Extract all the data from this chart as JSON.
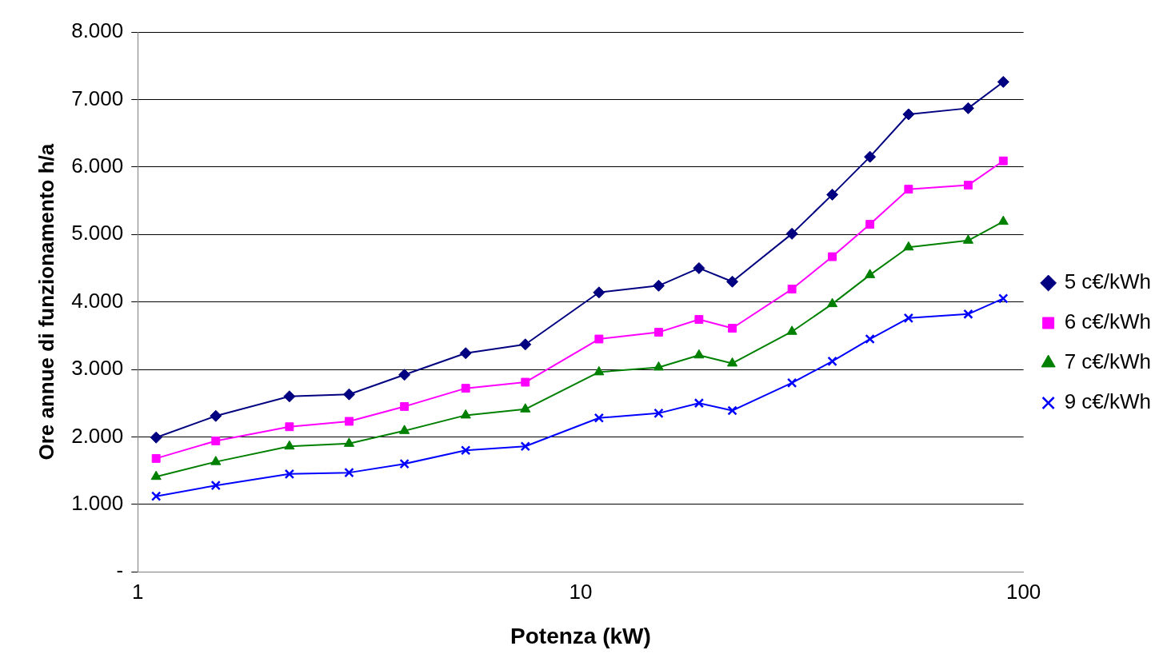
{
  "chart_data": {
    "type": "line",
    "xlabel": "Potenza (kW)",
    "ylabel": "Ore annue di funzionamento h/a",
    "x": [
      1.1,
      1.5,
      2.2,
      3,
      4,
      5.5,
      7.5,
      11,
      15,
      18.5,
      22,
      30,
      37,
      45,
      55,
      75,
      90
    ],
    "series": [
      {
        "name": "5 c€/kWh",
        "color": "#000080",
        "marker": "diamond",
        "values": [
          1990,
          2310,
          2600,
          2630,
          2920,
          3240,
          3370,
          4140,
          4240,
          4500,
          4300,
          5010,
          5590,
          6150,
          6780,
          6870,
          7260
        ]
      },
      {
        "name": "6 c€/kWh",
        "color": "#ff00ff",
        "marker": "square",
        "values": [
          1680,
          1940,
          2150,
          2230,
          2450,
          2720,
          2810,
          3450,
          3550,
          3740,
          3610,
          4190,
          4670,
          5150,
          5670,
          5730,
          6090
        ]
      },
      {
        "name": "7 c€/kWh",
        "color": "#008000",
        "marker": "triangle",
        "values": [
          1410,
          1630,
          1860,
          1900,
          2090,
          2320,
          2410,
          2960,
          3030,
          3210,
          3090,
          3560,
          3970,
          4400,
          4810,
          4910,
          5190
        ]
      },
      {
        "name": "9 c€/kWh",
        "color": "#0000ff",
        "marker": "cross",
        "values": [
          1120,
          1280,
          1450,
          1470,
          1600,
          1800,
          1860,
          2280,
          2350,
          2500,
          2390,
          2800,
          3120,
          3450,
          3760,
          3820,
          4050
        ]
      }
    ],
    "log": "x",
    "xlim": [
      1,
      100
    ],
    "xticks": [
      1,
      10,
      100
    ],
    "ylim": [
      0,
      8000
    ],
    "yticks": [
      {
        "value": 0,
        "label": "-"
      },
      {
        "value": 1000,
        "label": "1.000"
      },
      {
        "value": 2000,
        "label": "2.000"
      },
      {
        "value": 3000,
        "label": "3.000"
      },
      {
        "value": 4000,
        "label": "4.000"
      },
      {
        "value": 5000,
        "label": "5.000"
      },
      {
        "value": 6000,
        "label": "6.000"
      },
      {
        "value": 7000,
        "label": "7.000"
      },
      {
        "value": 8000,
        "label": "8.000"
      }
    ],
    "grid": "y",
    "legend": "right"
  }
}
